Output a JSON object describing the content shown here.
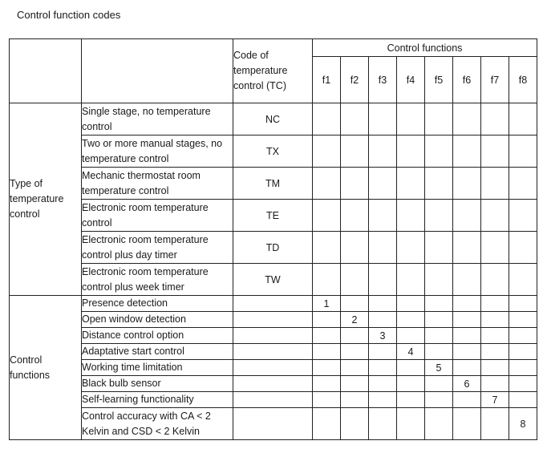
{
  "title": "Control function codes",
  "table": {
    "header": {
      "code_col_label": "Code of temperature control (TC)",
      "functions_group_label": "Control functions",
      "f_labels": [
        "f1",
        "f2",
        "f3",
        "f4",
        "f5",
        "f6",
        "f7",
        "f8"
      ]
    },
    "sections": [
      {
        "group_label": "Type of temperature control",
        "rows": [
          {
            "description": "Single stage, no temperature control",
            "code": "NC",
            "f": [
              "",
              "",
              "",
              "",
              "",
              "",
              "",
              ""
            ]
          },
          {
            "description": "Two or more manual stages, no temperature control",
            "code": "TX",
            "f": [
              "",
              "",
              "",
              "",
              "",
              "",
              "",
              ""
            ]
          },
          {
            "description": "Mechanic thermostat room temperature control",
            "code": "TM",
            "f": [
              "",
              "",
              "",
              "",
              "",
              "",
              "",
              ""
            ]
          },
          {
            "description": "Electronic room temperature control",
            "code": "TE",
            "f": [
              "",
              "",
              "",
              "",
              "",
              "",
              "",
              ""
            ]
          },
          {
            "description": "Electronic room temperature control plus day timer",
            "code": "TD",
            "f": [
              "",
              "",
              "",
              "",
              "",
              "",
              "",
              ""
            ]
          },
          {
            "description": "Electronic room temperature control plus week timer",
            "code": "TW",
            "f": [
              "",
              "",
              "",
              "",
              "",
              "",
              "",
              ""
            ]
          }
        ]
      },
      {
        "group_label": "Control functions",
        "rows": [
          {
            "description": "Presence detection",
            "code": "",
            "f": [
              "1",
              "",
              "",
              "",
              "",
              "",
              "",
              ""
            ]
          },
          {
            "description": "Open window detection",
            "code": "",
            "f": [
              "",
              "2",
              "",
              "",
              "",
              "",
              "",
              ""
            ]
          },
          {
            "description": "Distance control option",
            "code": "",
            "f": [
              "",
              "",
              "3",
              "",
              "",
              "",
              "",
              ""
            ]
          },
          {
            "description": "Adaptative start control",
            "code": "",
            "f": [
              "",
              "",
              "",
              "4",
              "",
              "",
              "",
              ""
            ]
          },
          {
            "description": "Working time limitation",
            "code": "",
            "f": [
              "",
              "",
              "",
              "",
              "5",
              "",
              "",
              ""
            ]
          },
          {
            "description": "Black bulb sensor",
            "code": "",
            "f": [
              "",
              "",
              "",
              "",
              "",
              "6",
              "",
              ""
            ]
          },
          {
            "description": "Self-learning functionality",
            "code": "",
            "f": [
              "",
              "",
              "",
              "",
              "",
              "",
              "7",
              ""
            ]
          },
          {
            "description": "Control accuracy with CA < 2 Kelvin and CSD < 2 Kelvin",
            "code": "",
            "f": [
              "",
              "",
              "",
              "",
              "",
              "",
              "",
              "8"
            ]
          }
        ]
      }
    ]
  }
}
